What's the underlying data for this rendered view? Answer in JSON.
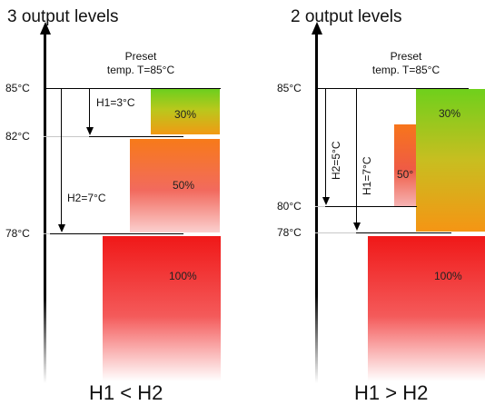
{
  "left": {
    "title": "3 output levels",
    "preset_line1": "Preset",
    "preset_line2": "temp. T=85°C",
    "temps": [
      "85°C",
      "82°C",
      "78°C"
    ],
    "h1": "H1=3°C",
    "h2": "H2=7°C",
    "levels": [
      "30%",
      "50%",
      "100%"
    ],
    "caption": "H1 < H2"
  },
  "right": {
    "title": "2 output levels",
    "preset_line1": "Preset",
    "preset_line2": "temp. T=85°C",
    "temps": [
      "85°C",
      "80°C",
      "78°C"
    ],
    "h1": "H1=7°C",
    "h2": "H2=5°C",
    "levels": [
      "30%",
      "50°",
      "100%"
    ],
    "caption": "H1 > H2"
  },
  "colors": {
    "green": "#6ccf1e",
    "orange": "#f77a19",
    "red": "#f01818"
  }
}
